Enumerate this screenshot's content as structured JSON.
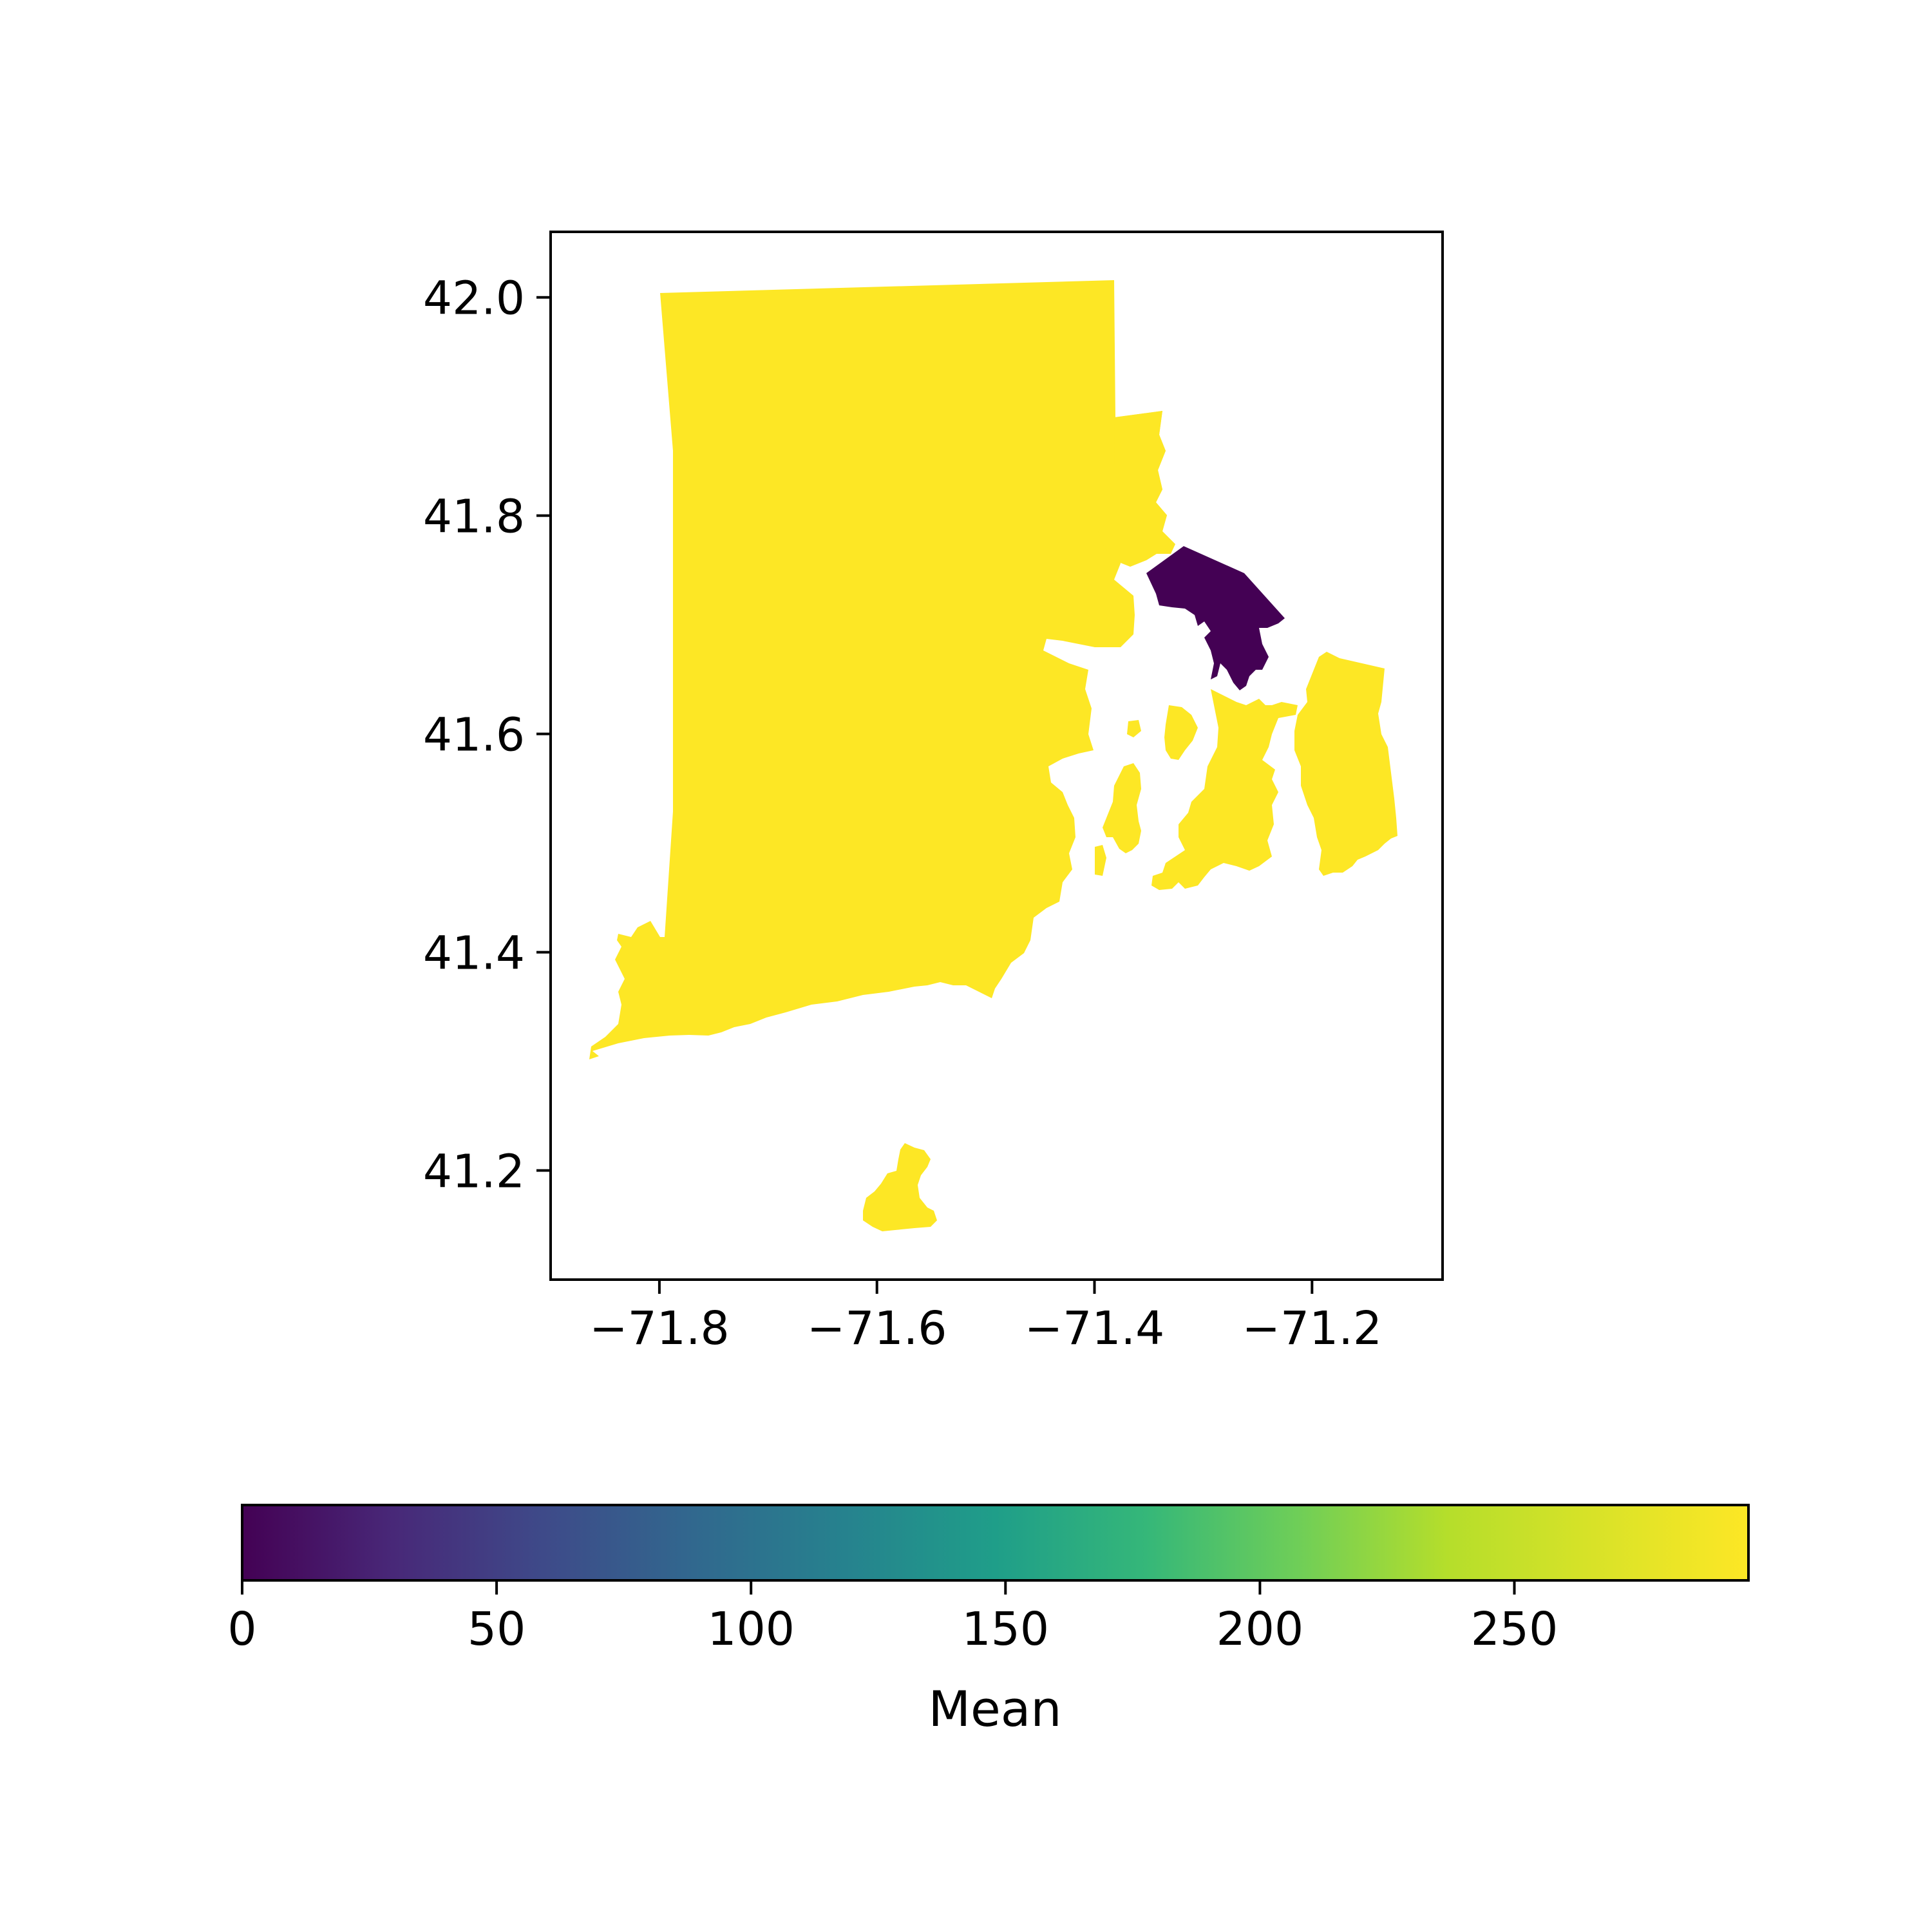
{
  "chart_data": {
    "type": "choropleth",
    "title": "",
    "xlabel": "",
    "ylabel": "",
    "xlim": [
      -71.9,
      -71.08
    ],
    "ylim": [
      41.1,
      42.06
    ],
    "x_ticks": [
      {
        "value": -71.8,
        "label": "−71.8"
      },
      {
        "value": -71.6,
        "label": "−71.6"
      },
      {
        "value": -71.4,
        "label": "−71.4"
      },
      {
        "value": -71.2,
        "label": "−71.2"
      }
    ],
    "y_ticks": [
      {
        "value": 42.0,
        "label": "42.0"
      },
      {
        "value": 41.8,
        "label": "41.8"
      },
      {
        "value": 41.6,
        "label": "41.6"
      },
      {
        "value": 41.4,
        "label": "41.4"
      },
      {
        "value": 41.2,
        "label": "41.2"
      }
    ],
    "regions": [
      {
        "id": "mainland-west",
        "value": 296
      },
      {
        "id": "northeast-strip",
        "value": 296
      },
      {
        "id": "bristol-peninsula",
        "value": 0
      },
      {
        "id": "aquidneck-island",
        "value": 296
      },
      {
        "id": "sakonnet",
        "value": 296
      },
      {
        "id": "conanicut-island",
        "value": 296
      },
      {
        "id": "prudence-island",
        "value": 296
      },
      {
        "id": "block-island",
        "value": 296
      }
    ],
    "colorbar": {
      "label": "Mean",
      "min": 0,
      "max": 296,
      "colormap": "viridis",
      "ticks": [
        {
          "value": 0,
          "label": "0"
        },
        {
          "value": 50,
          "label": "50"
        },
        {
          "value": 100,
          "label": "100"
        },
        {
          "value": 150,
          "label": "150"
        },
        {
          "value": 200,
          "label": "200"
        },
        {
          "value": 250,
          "label": "250"
        }
      ],
      "orientation": "horizontal",
      "placement": "bottom"
    },
    "colors": {
      "high": "#fde725",
      "low": "#440154"
    }
  }
}
